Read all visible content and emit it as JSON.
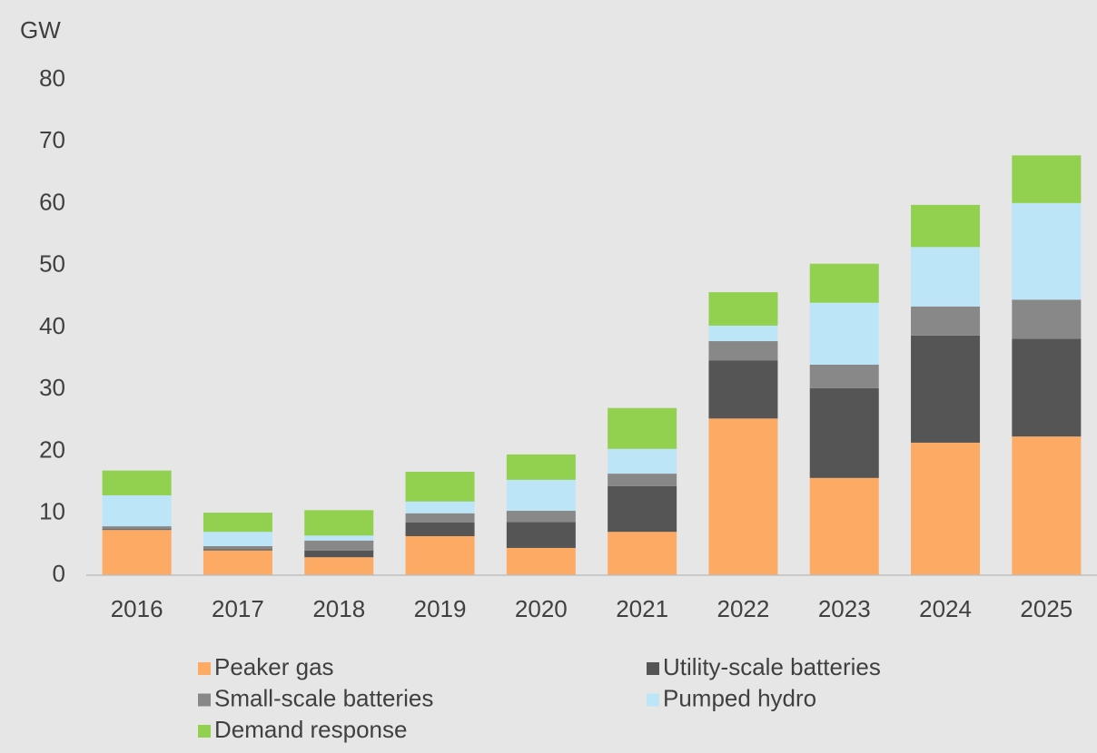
{
  "chart_data": {
    "type": "stacked_bar",
    "y_axis_label": "GW",
    "categories": [
      "2016",
      "2017",
      "2018",
      "2019",
      "2020",
      "2021",
      "2022",
      "2023",
      "2024",
      "2025"
    ],
    "series": [
      {
        "name": "Peaker gas",
        "color": "#fdaa65",
        "values": [
          7.3,
          4.0,
          2.9,
          6.3,
          4.4,
          7.0,
          25.3,
          15.7,
          21.4,
          22.4
        ]
      },
      {
        "name": "Utility-scale batteries",
        "color": "#555555",
        "values": [
          0.1,
          0.2,
          1.1,
          2.2,
          4.2,
          7.4,
          9.4,
          14.5,
          17.3,
          15.8
        ]
      },
      {
        "name": "Small-scale batteries",
        "color": "#888888",
        "values": [
          0.5,
          0.5,
          1.6,
          1.5,
          1.8,
          2.0,
          3.1,
          3.8,
          4.7,
          6.3
        ]
      },
      {
        "name": "Pumped hydro",
        "color": "#bde5f8",
        "values": [
          5.0,
          2.3,
          0.8,
          1.9,
          5.0,
          4.0,
          2.5,
          10.0,
          9.6,
          15.6
        ]
      },
      {
        "name": "Demand response",
        "color": "#92d050",
        "values": [
          4.0,
          3.1,
          4.1,
          4.8,
          4.1,
          6.6,
          5.4,
          6.3,
          6.8,
          7.7
        ]
      }
    ],
    "ylim": [
      0,
      80
    ],
    "yticks": [
      0,
      10,
      20,
      30,
      40,
      50,
      60,
      70,
      80
    ],
    "grid": false,
    "legend": "bottom"
  }
}
